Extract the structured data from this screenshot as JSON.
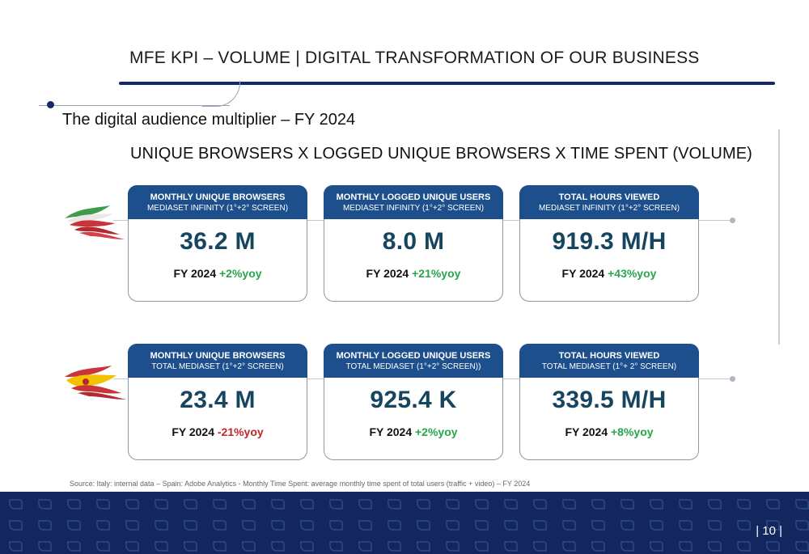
{
  "header": {
    "title": "MFE KPI – VOLUME | DIGITAL TRANSFORMATION OF OUR BUSINESS"
  },
  "subtitle": "The digital audience multiplier – FY 2024",
  "section_title": "UNIQUE BROWSERS X LOGGED UNIQUE BROWSERS X TIME SPENT (VOLUME)",
  "rows": [
    {
      "flag": "italy-flag-icon",
      "cards": [
        {
          "head1": "MONTHLY UNIQUE BROWSERS",
          "head2": "MEDIASET INFINITY (1°+2° SCREEN)",
          "value": "36.2 M",
          "period": "FY 2024",
          "change": "+2%yoy",
          "trend": "positive"
        },
        {
          "head1": "MONTHLY LOGGED UNIQUE USERS",
          "head2": "MEDIASET INFINITY (1°+2° SCREEN)",
          "value": "8.0 M",
          "period": "FY 2024",
          "change": "+21%yoy",
          "trend": "positive"
        },
        {
          "head1": "TOTAL HOURS VIEWED",
          "head2": "MEDIASET INFINITY (1°+2° SCREEN)",
          "value": "919.3 M/H",
          "period": "FY 2024",
          "change": "+43%yoy",
          "trend": "positive"
        }
      ]
    },
    {
      "flag": "spain-flag-icon",
      "cards": [
        {
          "head1": "MONTHLY UNIQUE BROWSERS",
          "head2": "TOTAL MEDIASET (1°+2° SCREEN)",
          "value": "23.4 M",
          "period": "FY 2024",
          "change": "-21%yoy",
          "trend": "negative"
        },
        {
          "head1": "MONTHLY LOGGED UNIQUE USERS",
          "head2": "TOTAL MEDIASET (1°+2° SCREEN))",
          "value": "925.4 K",
          "period": "FY 2024",
          "change": "+2%yoy",
          "trend": "positive"
        },
        {
          "head1": "TOTAL HOURS VIEWED",
          "head2": "TOTAL MEDIASET (1°+ 2° SCREEN)",
          "value": "339.5 M/H",
          "period": "FY 2024",
          "change": "+8%yoy",
          "trend": "positive"
        }
      ]
    }
  ],
  "colors": {
    "accent_navy": "#13296b",
    "card_header": "#1d4f8c",
    "value_text": "#16455f",
    "positive": "#27a64a",
    "negative": "#c0262b"
  },
  "source": "Source: Italy: internal data – Spain: Adobe Analytics  - Monthly Time Spent: average monthly time spent of total users (traffic + video) – FY 2024",
  "page_number": "| 10 |"
}
